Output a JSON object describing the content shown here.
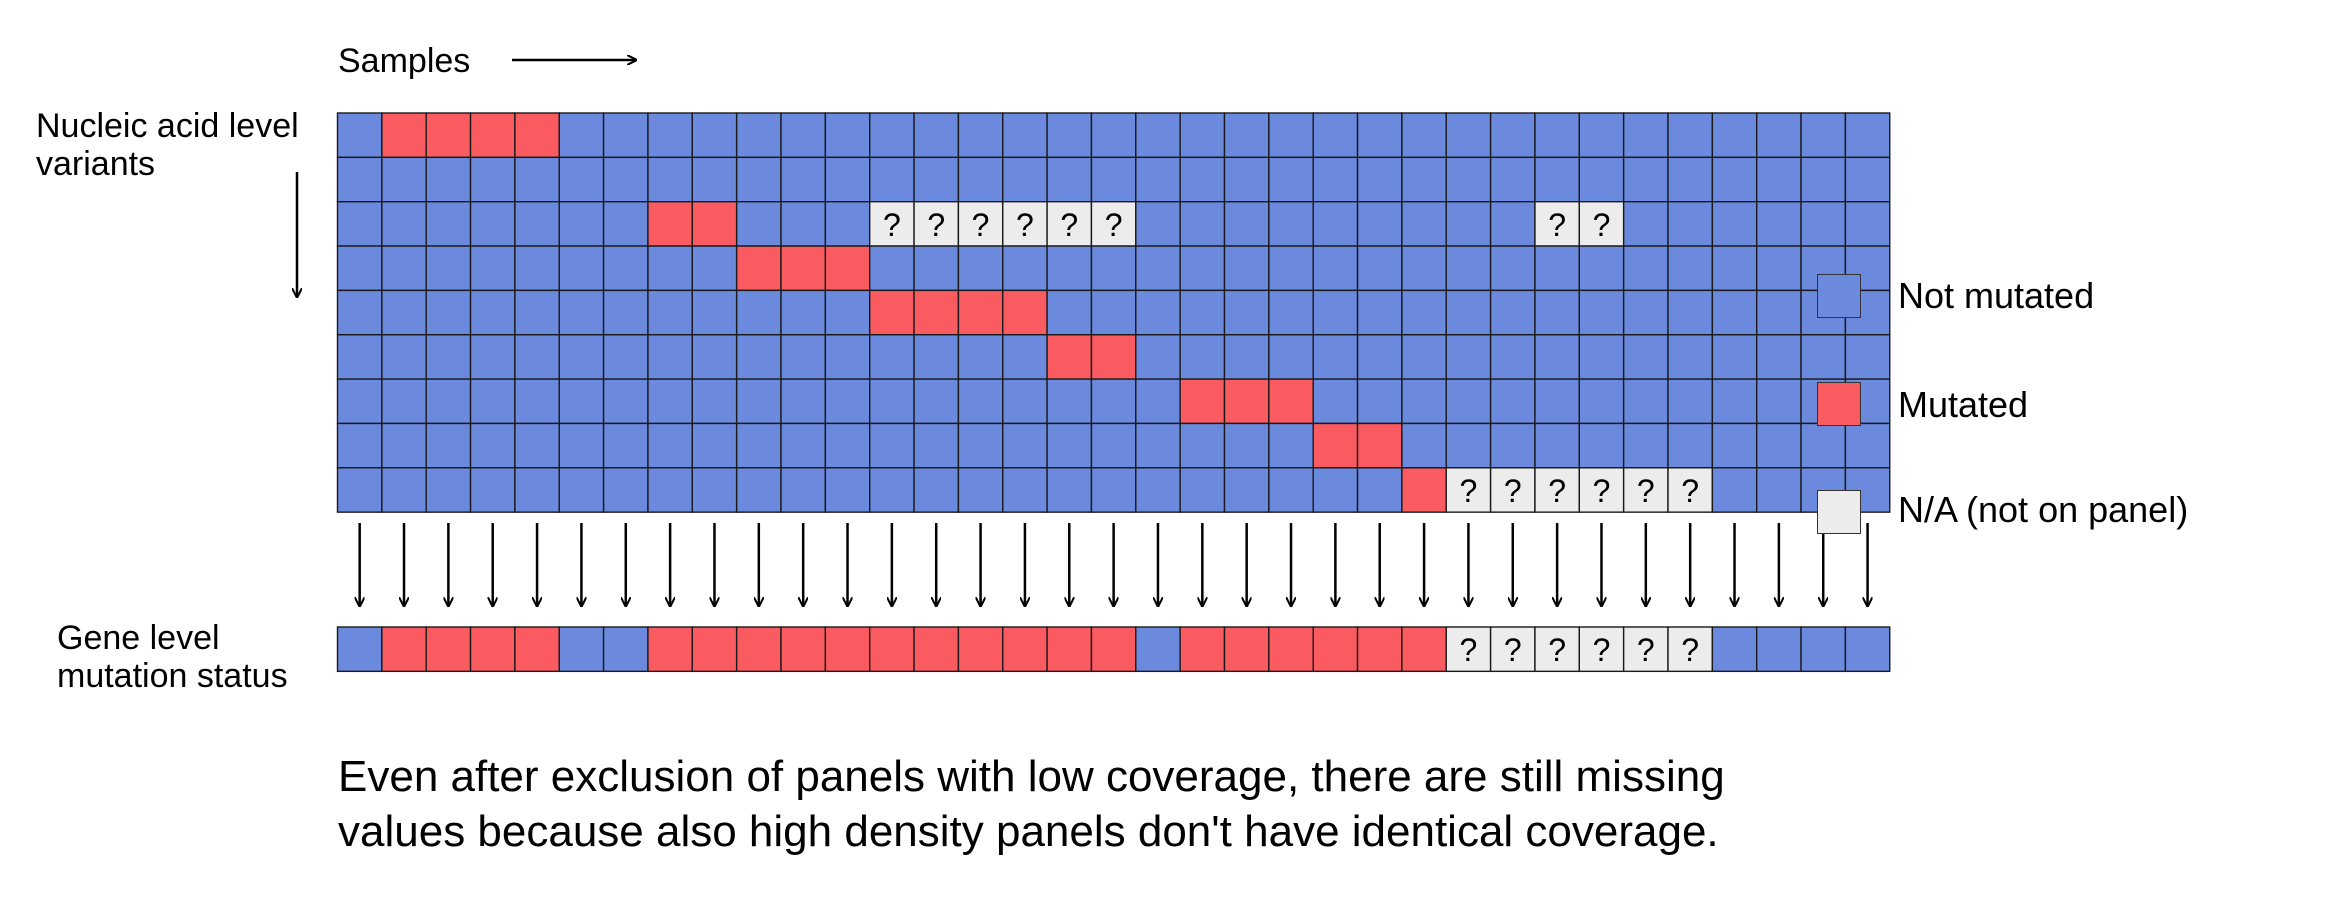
{
  "labels": {
    "samples": "Samples",
    "variants_line1": "Nucleic acid level",
    "variants_line2": "variants",
    "gene_line1": "Gene level",
    "gene_line2": "mutation status"
  },
  "caption": {
    "line1": "Even after exclusion of panels with low coverage, there are still missing",
    "line2": "values because also high density panels don't have identical coverage."
  },
  "legend": [
    {
      "key": "N",
      "label": "Not mutated",
      "color": "#6b8ade"
    },
    {
      "key": "M",
      "label": "Mutated",
      "color": "#fa5b60"
    },
    {
      "key": "Q",
      "label": "N/A (not on panel)",
      "color": "#ececec"
    }
  ],
  "unknown_symbol": "?",
  "variant_matrix": [
    "NMMMMNNNNNNNNNNNNNNNNNNNNNNNNNNNNNN",
    "NNNNNNNNNNNNNNNNNNNNNNNNNNNNNNNNNNN",
    "NNNNNNNMMNNNQQQQQQNNNNNNNNNQQNNNNNN",
    "NNNNNNNNNMMMNNNNNNNNNNNNNNNNNNNNNNN",
    "NNNNNNNNNNNNMMMMNNNNNNNNNNNNNNNNNNN",
    "NNNNNNNNNNNNNNNNMMNNNNNNNNNNNNNNNNN",
    "NNNNNNNNNNNNNNNNNNNMMMNNNNNNNNNNNNN",
    "NNNNNNNNNNNNNNNNNNNNNNMMNNNNNNNNNNN",
    "NNNNNNNNNNNNNNNNNNNNNNNNMQQQQQQNNNN"
  ],
  "gene_row": "NMMMMNNMMMMMMMMMMMNMMMMMMQQQQQQNNNN"
}
